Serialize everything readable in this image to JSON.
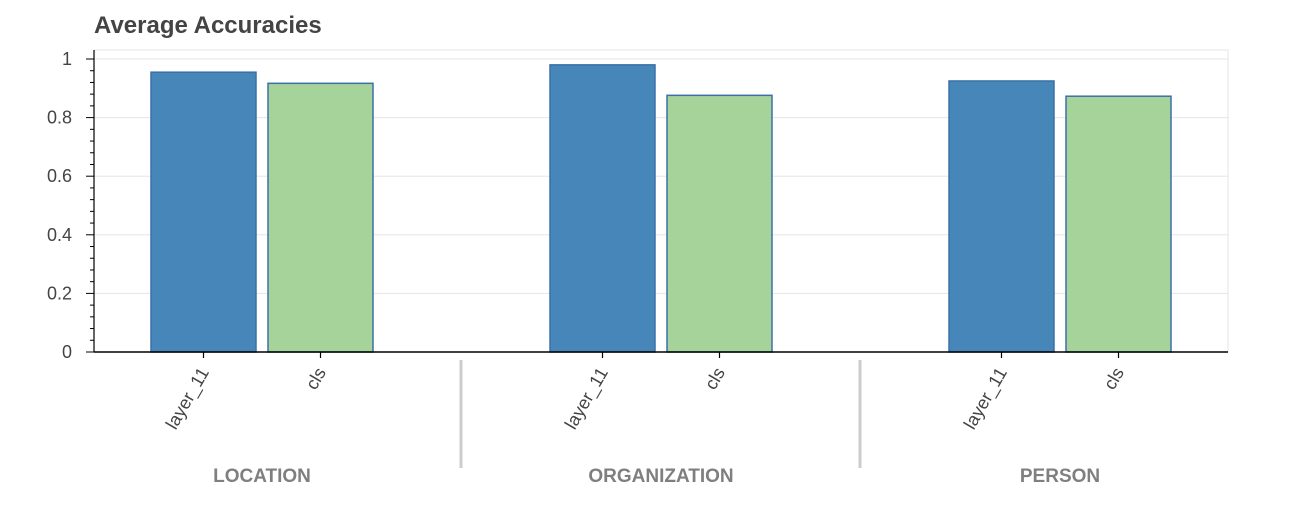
{
  "chart_data": {
    "type": "bar",
    "title": "Average Accuracies",
    "xlabel": "",
    "ylabel": "",
    "ylim": [
      0,
      1
    ],
    "yticks": [
      "0",
      "0.2",
      "0.4",
      "0.6",
      "0.8",
      "1"
    ],
    "grid": true,
    "groups": [
      {
        "label": "LOCATION",
        "bars": [
          {
            "category": "layer_11",
            "value": 0.955
          },
          {
            "category": "cls",
            "value": 0.917
          }
        ]
      },
      {
        "label": "ORGANIZATION",
        "bars": [
          {
            "category": "layer_11",
            "value": 0.98
          },
          {
            "category": "cls",
            "value": 0.876
          }
        ]
      },
      {
        "label": "PERSON",
        "bars": [
          {
            "category": "layer_11",
            "value": 0.925
          },
          {
            "category": "cls",
            "value": 0.873
          }
        ]
      }
    ],
    "colors": {
      "layer_11": "#4786b8",
      "cls": "#a5d39a",
      "outline": "#3a70a8"
    }
  }
}
